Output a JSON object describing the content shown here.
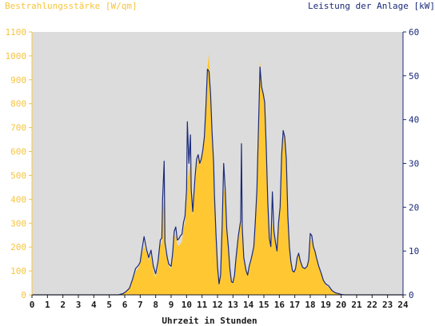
{
  "chart_data": {
    "type": "area",
    "left_axis": {
      "label": "Bestrahlungsstärke [W/qm]",
      "ylim": [
        0,
        1100
      ],
      "ticks": [
        0,
        100,
        200,
        300,
        400,
        500,
        600,
        700,
        800,
        900,
        1000,
        1100
      ],
      "color": "#f7c43b"
    },
    "right_axis": {
      "label": "Leistung der Anlage [kW]",
      "ylim": [
        0,
        60
      ],
      "ticks": [
        0,
        10,
        20,
        30,
        40,
        50,
        60
      ],
      "color": "#1a2a7a"
    },
    "x_axis": {
      "label": "Uhrzeit in Stunden",
      "xlim": [
        0,
        24
      ],
      "ticks": [
        0,
        1,
        2,
        3,
        4,
        5,
        6,
        7,
        8,
        9,
        10,
        11,
        12,
        13,
        14,
        15,
        16,
        17,
        18,
        19,
        20,
        21,
        22,
        23,
        24
      ]
    },
    "grid": false,
    "background": "#dcdcdc",
    "series": [
      {
        "name": "Bestrahlungsstärke",
        "axis": "left",
        "kind": "area",
        "color": "#ffc833",
        "points": [
          [
            0,
            0
          ],
          [
            5.6,
            0
          ],
          [
            5.9,
            5
          ],
          [
            6.1,
            15
          ],
          [
            6.3,
            30
          ],
          [
            6.5,
            60
          ],
          [
            6.7,
            95
          ],
          [
            6.9,
            115
          ],
          [
            7.0,
            135
          ],
          [
            7.1,
            170
          ],
          [
            7.25,
            205
          ],
          [
            7.4,
            180
          ],
          [
            7.55,
            145
          ],
          [
            7.7,
            165
          ],
          [
            7.85,
            100
          ],
          [
            8.0,
            70
          ],
          [
            8.15,
            120
          ],
          [
            8.3,
            210
          ],
          [
            8.4,
            215
          ],
          [
            8.45,
            350
          ],
          [
            8.55,
            400
          ],
          [
            8.6,
            190
          ],
          [
            8.75,
            150
          ],
          [
            8.85,
            120
          ],
          [
            9.0,
            110
          ],
          [
            9.1,
            165
          ],
          [
            9.2,
            240
          ],
          [
            9.3,
            255
          ],
          [
            9.4,
            210
          ],
          [
            9.5,
            205
          ],
          [
            9.6,
            215
          ],
          [
            9.7,
            220
          ],
          [
            9.8,
            280
          ],
          [
            9.9,
            300
          ],
          [
            10.0,
            390
          ],
          [
            10.05,
            470
          ],
          [
            10.15,
            520
          ],
          [
            10.25,
            545
          ],
          [
            10.3,
            420
          ],
          [
            10.4,
            330
          ],
          [
            10.55,
            450
          ],
          [
            10.65,
            540
          ],
          [
            10.75,
            580
          ],
          [
            10.85,
            540
          ],
          [
            10.95,
            560
          ],
          [
            11.05,
            610
          ],
          [
            11.15,
            670
          ],
          [
            11.25,
            780
          ],
          [
            11.35,
            950
          ],
          [
            11.45,
            1010
          ],
          [
            11.55,
            870
          ],
          [
            11.65,
            700
          ],
          [
            11.75,
            560
          ],
          [
            11.8,
            420
          ],
          [
            11.9,
            250
          ],
          [
            12.0,
            120
          ],
          [
            12.1,
            40
          ],
          [
            12.2,
            70
          ],
          [
            12.3,
            280
          ],
          [
            12.4,
            450
          ],
          [
            12.5,
            420
          ],
          [
            12.6,
            260
          ],
          [
            12.7,
            200
          ],
          [
            12.8,
            110
          ],
          [
            12.9,
            55
          ],
          [
            13.0,
            50
          ],
          [
            13.1,
            80
          ],
          [
            13.2,
            150
          ],
          [
            13.35,
            240
          ],
          [
            13.5,
            320
          ],
          [
            13.6,
            280
          ],
          [
            13.7,
            150
          ],
          [
            13.85,
            100
          ],
          [
            13.95,
            80
          ],
          [
            14.05,
            120
          ],
          [
            14.2,
            150
          ],
          [
            14.35,
            200
          ],
          [
            14.45,
            310
          ],
          [
            14.55,
            430
          ],
          [
            14.65,
            700
          ],
          [
            14.75,
            980
          ],
          [
            14.85,
            880
          ],
          [
            14.95,
            850
          ],
          [
            15.05,
            820
          ],
          [
            15.15,
            620
          ],
          [
            15.25,
            390
          ],
          [
            15.35,
            240
          ],
          [
            15.45,
            200
          ],
          [
            15.55,
            300
          ],
          [
            15.65,
            270
          ],
          [
            15.75,
            220
          ],
          [
            15.85,
            180
          ],
          [
            15.95,
            300
          ],
          [
            16.05,
            360
          ],
          [
            16.15,
            580
          ],
          [
            16.25,
            680
          ],
          [
            16.35,
            650
          ],
          [
            16.45,
            560
          ],
          [
            16.55,
            320
          ],
          [
            16.65,
            200
          ],
          [
            16.75,
            140
          ],
          [
            16.85,
            100
          ],
          [
            16.95,
            95
          ],
          [
            17.05,
            110
          ],
          [
            17.15,
            150
          ],
          [
            17.25,
            170
          ],
          [
            17.35,
            140
          ],
          [
            17.5,
            115
          ],
          [
            17.65,
            110
          ],
          [
            17.8,
            120
          ],
          [
            17.9,
            145
          ],
          [
            18.0,
            225
          ],
          [
            18.1,
            230
          ],
          [
            18.2,
            200
          ],
          [
            18.3,
            180
          ],
          [
            18.4,
            150
          ],
          [
            18.55,
            120
          ],
          [
            18.7,
            95
          ],
          [
            18.85,
            60
          ],
          [
            19.0,
            40
          ],
          [
            19.2,
            30
          ],
          [
            19.4,
            18
          ],
          [
            19.6,
            10
          ],
          [
            19.8,
            5
          ],
          [
            20.0,
            2
          ],
          [
            20.2,
            0
          ],
          [
            24,
            0
          ]
        ]
      },
      {
        "name": "Leistung der Anlage",
        "axis": "right",
        "kind": "line",
        "color": "#1a2a7a",
        "points": [
          [
            0,
            0
          ],
          [
            5.6,
            0
          ],
          [
            5.9,
            0.3
          ],
          [
            6.1,
            0.8
          ],
          [
            6.3,
            1.5
          ],
          [
            6.5,
            3.5
          ],
          [
            6.7,
            6
          ],
          [
            6.9,
            6.8
          ],
          [
            7.0,
            7.5
          ],
          [
            7.1,
            10
          ],
          [
            7.25,
            13.3
          ],
          [
            7.4,
            10.5
          ],
          [
            7.55,
            8.5
          ],
          [
            7.7,
            10.2
          ],
          [
            7.85,
            6.5
          ],
          [
            8.0,
            4.8
          ],
          [
            8.15,
            7.5
          ],
          [
            8.3,
            12.5
          ],
          [
            8.4,
            13
          ],
          [
            8.45,
            22
          ],
          [
            8.55,
            30.5
          ],
          [
            8.6,
            12
          ],
          [
            8.75,
            8.5
          ],
          [
            8.85,
            7
          ],
          [
            9.0,
            6.5
          ],
          [
            9.1,
            9.5
          ],
          [
            9.2,
            14.5
          ],
          [
            9.3,
            15.5
          ],
          [
            9.4,
            12.5
          ],
          [
            9.5,
            12.8
          ],
          [
            9.6,
            13.5
          ],
          [
            9.7,
            13.8
          ],
          [
            9.8,
            16.5
          ],
          [
            9.9,
            18
          ],
          [
            10.0,
            24
          ],
          [
            10.05,
            39.5
          ],
          [
            10.15,
            30
          ],
          [
            10.25,
            36.5
          ],
          [
            10.3,
            24
          ],
          [
            10.4,
            19
          ],
          [
            10.55,
            27
          ],
          [
            10.65,
            31
          ],
          [
            10.75,
            32
          ],
          [
            10.85,
            30
          ],
          [
            10.95,
            31
          ],
          [
            11.05,
            33
          ],
          [
            11.15,
            36
          ],
          [
            11.25,
            43
          ],
          [
            11.35,
            51.5
          ],
          [
            11.45,
            51
          ],
          [
            11.55,
            46
          ],
          [
            11.65,
            37
          ],
          [
            11.75,
            30
          ],
          [
            11.8,
            23
          ],
          [
            11.9,
            14
          ],
          [
            12.0,
            6.5
          ],
          [
            12.1,
            2.5
          ],
          [
            12.2,
            4.5
          ],
          [
            12.3,
            15.5
          ],
          [
            12.4,
            30
          ],
          [
            12.5,
            24
          ],
          [
            12.6,
            15
          ],
          [
            12.7,
            11
          ],
          [
            12.8,
            6
          ],
          [
            12.9,
            3
          ],
          [
            13.0,
            2.8
          ],
          [
            13.1,
            4.5
          ],
          [
            13.2,
            8.5
          ],
          [
            13.35,
            13.5
          ],
          [
            13.5,
            17
          ],
          [
            13.55,
            34.5
          ],
          [
            13.6,
            15.5
          ],
          [
            13.7,
            8.5
          ],
          [
            13.85,
            5.5
          ],
          [
            13.95,
            4.5
          ],
          [
            14.05,
            6.5
          ],
          [
            14.2,
            8.5
          ],
          [
            14.35,
            11
          ],
          [
            14.45,
            17
          ],
          [
            14.55,
            24
          ],
          [
            14.65,
            38
          ],
          [
            14.75,
            52
          ],
          [
            14.85,
            47.5
          ],
          [
            14.95,
            46
          ],
          [
            15.05,
            44
          ],
          [
            15.15,
            34
          ],
          [
            15.25,
            21.5
          ],
          [
            15.35,
            13
          ],
          [
            15.45,
            11
          ],
          [
            15.55,
            23.5
          ],
          [
            15.65,
            14.5
          ],
          [
            15.75,
            12
          ],
          [
            15.85,
            10
          ],
          [
            15.95,
            16.5
          ],
          [
            16.05,
            20
          ],
          [
            16.15,
            32
          ],
          [
            16.25,
            37.5
          ],
          [
            16.35,
            36
          ],
          [
            16.45,
            31
          ],
          [
            16.55,
            18
          ],
          [
            16.65,
            11
          ],
          [
            16.75,
            7.5
          ],
          [
            16.85,
            5.5
          ],
          [
            16.95,
            5.2
          ],
          [
            17.05,
            6
          ],
          [
            17.15,
            8.5
          ],
          [
            17.25,
            9.5
          ],
          [
            17.35,
            7.8
          ],
          [
            17.5,
            6.3
          ],
          [
            17.65,
            6
          ],
          [
            17.8,
            6.5
          ],
          [
            17.9,
            8
          ],
          [
            18.0,
            14
          ],
          [
            18.1,
            13.5
          ],
          [
            18.2,
            11
          ],
          [
            18.3,
            10
          ],
          [
            18.4,
            8.5
          ],
          [
            18.55,
            6.5
          ],
          [
            18.7,
            5
          ],
          [
            18.85,
            3.3
          ],
          [
            19.0,
            2.5
          ],
          [
            19.2,
            2
          ],
          [
            19.4,
            1
          ],
          [
            19.6,
            0.5
          ],
          [
            19.8,
            0.3
          ],
          [
            20.0,
            0.1
          ],
          [
            20.2,
            0
          ],
          [
            24,
            0
          ]
        ]
      }
    ]
  }
}
